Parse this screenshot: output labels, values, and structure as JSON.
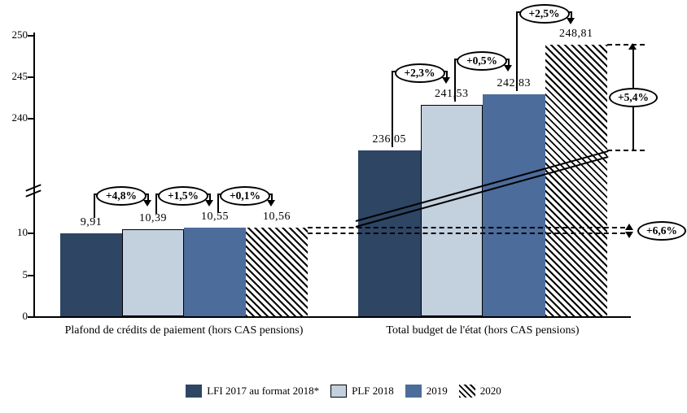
{
  "chart_data": {
    "type": "bar",
    "title": "",
    "y_axis": {
      "lower_ticks": [
        0,
        5,
        10
      ],
      "upper_ticks": [
        240,
        245,
        250
      ],
      "axis_break": true,
      "lower_range": [
        0,
        13
      ],
      "upper_range": [
        236,
        250
      ]
    },
    "categories": [
      "Plafond de crédits de paiement (hors CAS pensions)",
      "Total budget de l'état (hors CAS pensions)"
    ],
    "series": [
      {
        "name": "LFI 2017 au format 2018*",
        "color": "#2e4564",
        "pattern": "solid",
        "values": [
          9.91,
          236.05
        ],
        "value_labels": [
          "9,91",
          "236,05"
        ]
      },
      {
        "name": "PLF 2018",
        "color": "#c3d0de",
        "pattern": "solid-outlined",
        "values": [
          10.39,
          241.53
        ],
        "value_labels": [
          "10,39",
          "241,53"
        ]
      },
      {
        "name": "2019",
        "color": "#4c6c9b",
        "pattern": "solid",
        "values": [
          10.55,
          242.83
        ],
        "value_labels": [
          "10,55",
          "242,83"
        ]
      },
      {
        "name": "2020",
        "color": "#ffffff",
        "pattern": "diagonal-hatch",
        "values": [
          10.56,
          248.81
        ],
        "value_labels": [
          "10,56",
          "248,81"
        ]
      }
    ],
    "step_annotations": [
      {
        "group": 0,
        "from": 0,
        "to": 1,
        "label": "+4,8%"
      },
      {
        "group": 0,
        "from": 1,
        "to": 2,
        "label": "+1,5%"
      },
      {
        "group": 0,
        "from": 2,
        "to": 3,
        "label": "+0,1%"
      },
      {
        "group": 1,
        "from": 0,
        "to": 1,
        "label": "+2,3%"
      },
      {
        "group": 1,
        "from": 1,
        "to": 2,
        "label": "+0,5%"
      },
      {
        "group": 1,
        "from": 2,
        "to": 3,
        "label": "+2,5%"
      }
    ],
    "overall_annotations": [
      {
        "group": 1,
        "from": 0,
        "to": 3,
        "label": "+5,4%"
      },
      {
        "group": 0,
        "from": 0,
        "to": 3,
        "label": "+6,6%"
      }
    ],
    "legend_position": "bottom",
    "grid": false
  }
}
